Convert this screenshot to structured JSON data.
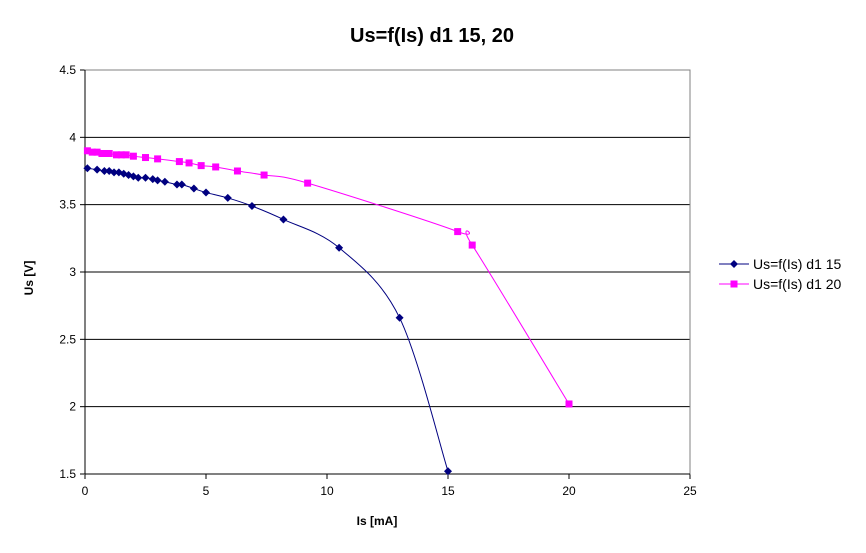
{
  "chart_data": {
    "type": "scatter",
    "title": "Us=f(Is) d1 15, 20",
    "xlabel": "Is [mA]",
    "ylabel": "Us [V]",
    "xlim": [
      0,
      25
    ],
    "ylim": [
      1.5,
      4.5
    ],
    "xticks": [
      "0",
      "5",
      "10",
      "15",
      "20",
      "25"
    ],
    "yticks": [
      "1.5",
      "2",
      "2.5",
      "3",
      "3.5",
      "4",
      "4.5"
    ],
    "grid": "horizontal major gridlines",
    "legend_position": "right",
    "series": [
      {
        "name": "Us=f(Is) d1 15",
        "color": "#000080",
        "marker": "diamond",
        "x": [
          0.1,
          0.5,
          0.8,
          1.0,
          1.2,
          1.4,
          1.6,
          1.8,
          2.0,
          2.2,
          2.5,
          2.8,
          3.0,
          3.3,
          3.8,
          4.0,
          4.5,
          5.0,
          5.9,
          6.9,
          8.2,
          10.5,
          13.0,
          15.0
        ],
        "y": [
          3.77,
          3.76,
          3.75,
          3.75,
          3.74,
          3.74,
          3.73,
          3.72,
          3.71,
          3.7,
          3.7,
          3.69,
          3.68,
          3.67,
          3.65,
          3.65,
          3.62,
          3.59,
          3.55,
          3.49,
          3.39,
          3.18,
          2.66,
          1.52
        ]
      },
      {
        "name": "Us=f(Is) d1 20",
        "color": "#ff00ff",
        "marker": "square",
        "x": [
          0.1,
          0.3,
          0.5,
          0.7,
          0.9,
          1.0,
          1.3,
          1.5,
          1.7,
          2.0,
          2.5,
          3.0,
          3.9,
          4.3,
          4.8,
          5.4,
          6.3,
          7.4,
          9.2,
          15.4,
          16.0,
          20.0
        ],
        "y": [
          3.9,
          3.89,
          3.89,
          3.88,
          3.88,
          3.88,
          3.87,
          3.87,
          3.87,
          3.86,
          3.85,
          3.84,
          3.82,
          3.81,
          3.79,
          3.78,
          3.75,
          3.72,
          3.66,
          3.3,
          3.2,
          2.02
        ]
      }
    ]
  }
}
